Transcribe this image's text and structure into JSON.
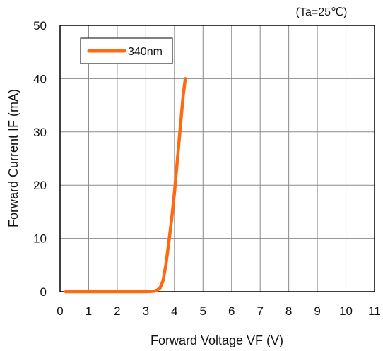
{
  "chart_data": {
    "type": "line",
    "title": "",
    "annotation": "(Ta=25℃)",
    "xlabel": "Forward Voltage VF (V)",
    "ylabel": "Forward Current IF (mA)",
    "xlim": [
      0,
      11
    ],
    "ylim": [
      0,
      50
    ],
    "x_ticks": [
      "0",
      "1",
      "2",
      "3",
      "4",
      "5",
      "6",
      "7",
      "8",
      "9",
      "10",
      "11"
    ],
    "y_ticks": [
      "0",
      "10",
      "20",
      "30",
      "40",
      "50"
    ],
    "grid": true,
    "legend_position": "top-left",
    "series": [
      {
        "name": "340nm",
        "color": "#ff6a10",
        "x": [
          0.2,
          1.0,
          2.0,
          3.0,
          3.3,
          3.4,
          3.5,
          3.6,
          3.7,
          3.8,
          3.9,
          4.0,
          4.1,
          4.2,
          4.3,
          4.38
        ],
        "y": [
          0,
          0,
          0,
          0,
          0.1,
          0.3,
          0.7,
          2.0,
          5.0,
          9.0,
          13.5,
          18.5,
          24.5,
          30.5,
          36.5,
          40.0
        ]
      }
    ]
  }
}
